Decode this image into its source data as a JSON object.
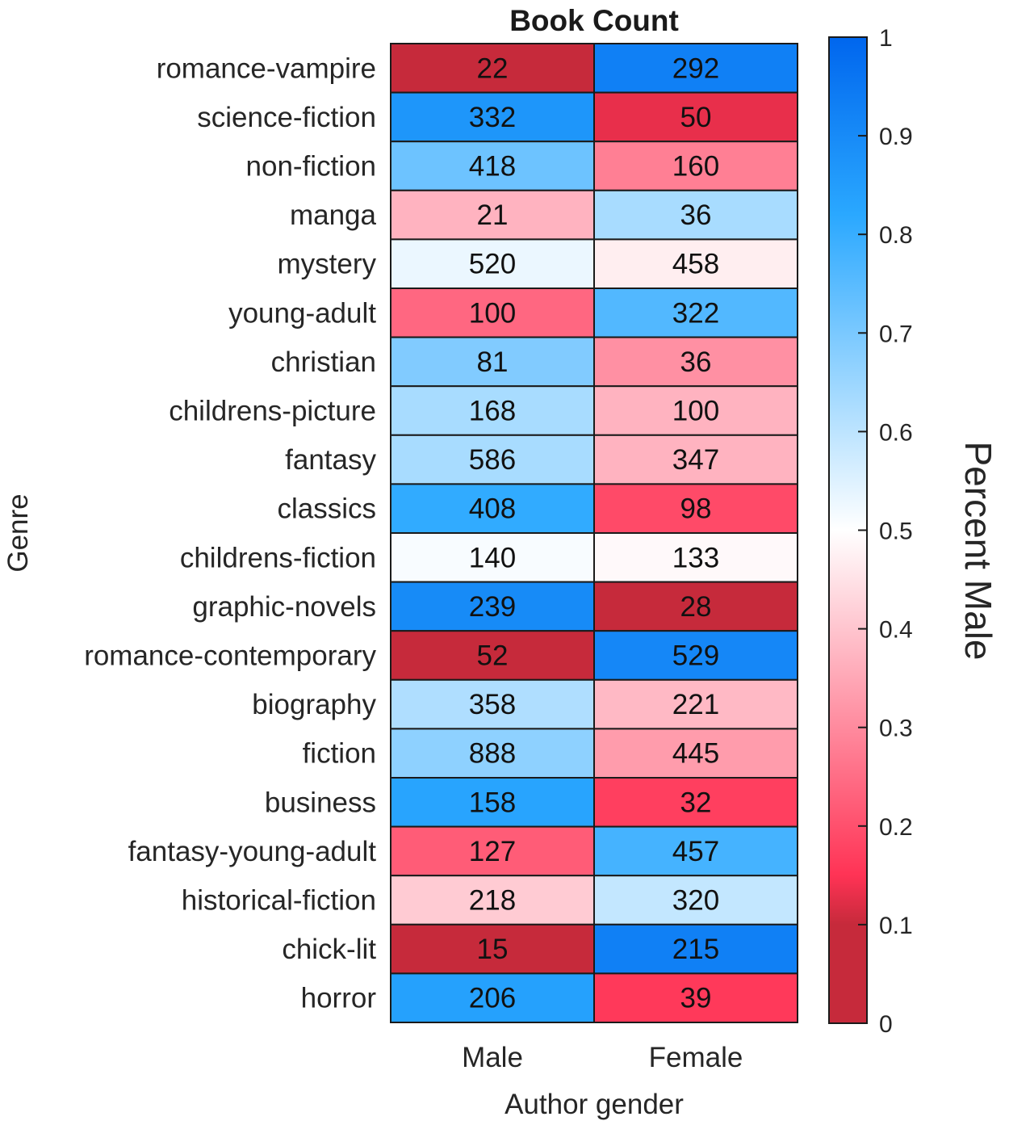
{
  "chart_data": {
    "type": "heatmap",
    "title": "Book Count",
    "xlabel": "Author gender",
    "ylabel": "Genre",
    "columns": [
      "Male",
      "Female"
    ],
    "rows": [
      "romance-vampire",
      "science-fiction",
      "non-fiction",
      "manga",
      "mystery",
      "young-adult",
      "christian",
      "childrens-picture",
      "fantasy",
      "classics",
      "childrens-fiction",
      "graphic-novels",
      "romance-contemporary",
      "biography",
      "fiction",
      "business",
      "fantasy-young-adult",
      "historical-fiction",
      "chick-lit",
      "horror"
    ],
    "counts": [
      [
        22,
        292
      ],
      [
        332,
        50
      ],
      [
        418,
        160
      ],
      [
        21,
        36
      ],
      [
        520,
        458
      ],
      [
        100,
        322
      ],
      [
        81,
        36
      ],
      [
        168,
        100
      ],
      [
        586,
        347
      ],
      [
        408,
        98
      ],
      [
        140,
        133
      ],
      [
        239,
        28
      ],
      [
        52,
        529
      ],
      [
        358,
        221
      ],
      [
        888,
        445
      ],
      [
        158,
        32
      ],
      [
        127,
        457
      ],
      [
        218,
        320
      ],
      [
        15,
        215
      ],
      [
        206,
        39
      ]
    ],
    "percent_male": [
      [
        0.07,
        0.93
      ],
      [
        0.87,
        0.13
      ],
      [
        0.72,
        0.28
      ],
      [
        0.37,
        0.63
      ],
      [
        0.53,
        0.47
      ],
      [
        0.24,
        0.76
      ],
      [
        0.69,
        0.31
      ],
      [
        0.63,
        0.37
      ],
      [
        0.63,
        0.37
      ],
      [
        0.81,
        0.19
      ],
      [
        0.51,
        0.49
      ],
      [
        0.9,
        0.1
      ],
      [
        0.09,
        0.91
      ],
      [
        0.62,
        0.38
      ],
      [
        0.67,
        0.33
      ],
      [
        0.83,
        0.17
      ],
      [
        0.22,
        0.78
      ],
      [
        0.41,
        0.59
      ],
      [
        0.07,
        0.93
      ],
      [
        0.84,
        0.16
      ]
    ],
    "colorbar": {
      "title": "Percent Male",
      "range": [
        0,
        1
      ],
      "ticks": [
        "0",
        "0.1",
        "0.2",
        "0.3",
        "0.4",
        "0.5",
        "0.6",
        "0.7",
        "0.8",
        "0.9",
        "1"
      ],
      "colors": {
        "low": "#c62a3b",
        "mid_low": "#ff3355",
        "mid": "#ffffff",
        "mid_high": "#2aa8ff",
        "high": "#0066ee"
      }
    },
    "grid": true
  }
}
